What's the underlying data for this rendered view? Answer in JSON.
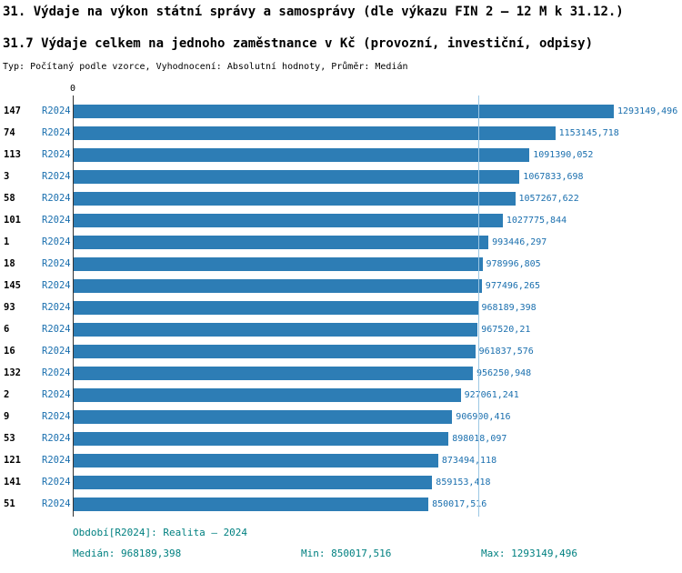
{
  "header": {
    "title_line1": "31. Výdaje na výkon státní správy a samosprávy (dle výkazu FIN 2 – 12 M k 31.12.)",
    "title_line2": "31.7 Výdaje celkem na jednoho zaměstnance v Kč (provozní, investiční, odpisy)",
    "meta_line": "Typ: Počítaný podle vzorce, Vyhodnocení: Absolutní hodnoty, Průměr: Medián"
  },
  "chart_data": {
    "type": "bar",
    "orientation": "horizontal",
    "x_axis_zero_label": "0",
    "xlim": [
      0,
      1330000
    ],
    "median": 968189.398,
    "grid": false,
    "rows": [
      {
        "id": "147",
        "series": "R2024",
        "value": 1293149.496,
        "value_label": "1293149,496"
      },
      {
        "id": "74",
        "series": "R2024",
        "value": 1153145.718,
        "value_label": "1153145,718"
      },
      {
        "id": "113",
        "series": "R2024",
        "value": 1091390.052,
        "value_label": "1091390,052"
      },
      {
        "id": "3",
        "series": "R2024",
        "value": 1067833.698,
        "value_label": "1067833,698"
      },
      {
        "id": "58",
        "series": "R2024",
        "value": 1057267.622,
        "value_label": "1057267,622"
      },
      {
        "id": "101",
        "series": "R2024",
        "value": 1027775.844,
        "value_label": "1027775,844"
      },
      {
        "id": "1",
        "series": "R2024",
        "value": 993446.297,
        "value_label": "993446,297"
      },
      {
        "id": "18",
        "series": "R2024",
        "value": 978996.805,
        "value_label": "978996,805"
      },
      {
        "id": "145",
        "series": "R2024",
        "value": 977496.265,
        "value_label": "977496,265"
      },
      {
        "id": "93",
        "series": "R2024",
        "value": 968189.398,
        "value_label": "968189,398"
      },
      {
        "id": "6",
        "series": "R2024",
        "value": 967520.21,
        "value_label": "967520,21"
      },
      {
        "id": "16",
        "series": "R2024",
        "value": 961837.576,
        "value_label": "961837,576"
      },
      {
        "id": "132",
        "series": "R2024",
        "value": 956250.948,
        "value_label": "956250,948"
      },
      {
        "id": "2",
        "series": "R2024",
        "value": 927061.241,
        "value_label": "927061,241"
      },
      {
        "id": "9",
        "series": "R2024",
        "value": 906900.416,
        "value_label": "906900,416"
      },
      {
        "id": "53",
        "series": "R2024",
        "value": 898018.097,
        "value_label": "898018,097"
      },
      {
        "id": "121",
        "series": "R2024",
        "value": 873494.118,
        "value_label": "873494,118"
      },
      {
        "id": "141",
        "series": "R2024",
        "value": 859153.418,
        "value_label": "859153,418"
      },
      {
        "id": "51",
        "series": "R2024",
        "value": 850017.516,
        "value_label": "850017,516"
      }
    ]
  },
  "footer": {
    "period_line": "Období[R2024]: Realita – 2024",
    "median_label": "Medián: 968189,398",
    "min_label": "Min: 850017,516",
    "max_label": "Max: 1293149,496"
  },
  "colors": {
    "bar_fill": "#2d7db5",
    "value_text": "#1a6fae",
    "series_text": "#1a6fae",
    "median_line": "#9cc7e4",
    "footer_text": "#008080",
    "axis_line": "#333333"
  }
}
